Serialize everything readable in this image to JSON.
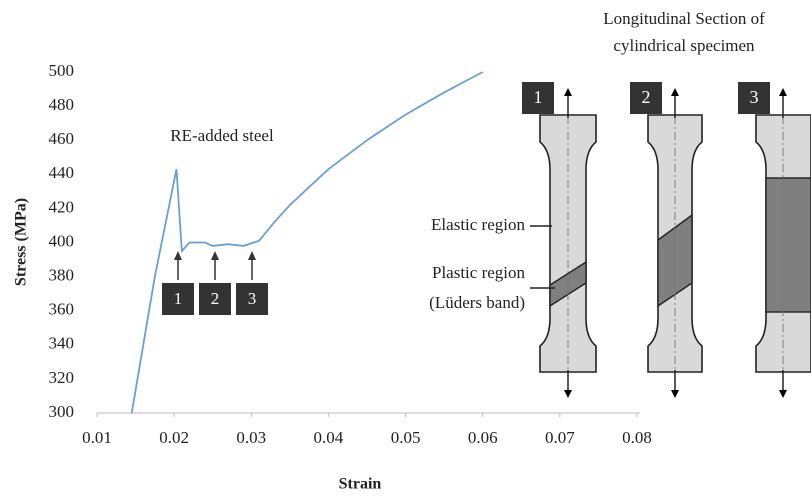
{
  "chart_data": {
    "type": "line",
    "x_label": "Strain",
    "y_label": "Stress (MPa)",
    "annotations": [
      "RE-added steel"
    ],
    "markers": [
      "1",
      "2",
      "3"
    ],
    "xlim": [
      0.01,
      0.08
    ],
    "xticks": [
      0.01,
      0.02,
      0.03,
      0.04,
      0.05,
      0.06,
      0.07,
      0.08
    ],
    "ylim": [
      300,
      500
    ],
    "yticks": [
      300,
      320,
      340,
      360,
      380,
      400,
      420,
      440,
      460,
      480,
      500
    ],
    "series": [
      {
        "color": "#6a9fd4",
        "x": [
          0.0145,
          0.0175,
          0.0203,
          0.021,
          0.022,
          0.024,
          0.025,
          0.027,
          0.029,
          0.031,
          0.033,
          0.035,
          0.04,
          0.045,
          0.05,
          0.055,
          0.06
        ],
        "values": [
          300,
          380,
          443,
          395,
          400,
          400,
          398,
          399,
          398,
          401,
          412,
          422,
          443,
          460,
          475,
          488,
          500
        ]
      }
    ]
  },
  "diagram": {
    "title_lines": [
      "Longitudinal Section of",
      "cylindrical specimen"
    ],
    "specimens": [
      "1",
      "2",
      "3"
    ],
    "elastic_label": "Elastic region",
    "plastic_label_lines": [
      "Plastic region",
      "(Lüders band)"
    ]
  }
}
